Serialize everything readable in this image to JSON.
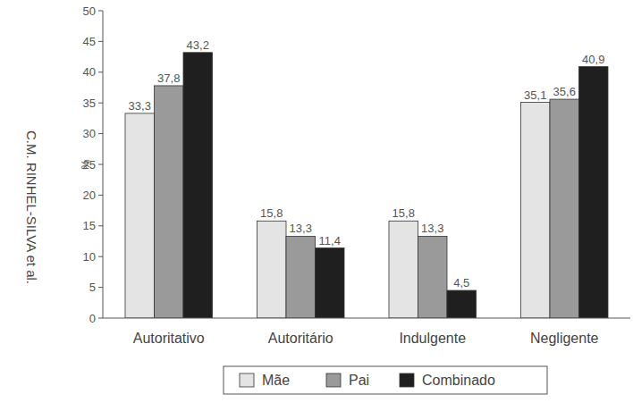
{
  "chart_data": {
    "type": "bar",
    "categories": [
      "Autoritativo",
      "Autoritário",
      "Indulgente",
      "Negligente"
    ],
    "series": [
      {
        "name": "Mãe",
        "color": "#e4e4e4",
        "values": [
          33.3,
          15.8,
          15.8,
          35.1
        ],
        "value_labels": [
          "33,3",
          "15,8",
          "15,8",
          "35,1"
        ]
      },
      {
        "name": "Pai",
        "color": "#9a9a9a",
        "values": [
          37.8,
          13.3,
          13.3,
          35.6
        ],
        "value_labels": [
          "37,8",
          "13,3",
          "13,3",
          "35,6"
        ]
      },
      {
        "name": "Combinado",
        "color": "#1f1f1f",
        "values": [
          43.2,
          11.4,
          4.5,
          40.9
        ],
        "value_labels": [
          "43,2",
          "11,4",
          "4,5",
          "40,9"
        ]
      }
    ],
    "ylabel": "%",
    "ylim": [
      0,
      50
    ],
    "yticks": [
      0,
      5,
      10,
      15,
      20,
      25,
      30,
      35,
      40,
      45,
      50
    ],
    "grid": false,
    "data_labels": true,
    "legend": "bottom",
    "annotations": [
      "C.M. RINHEL-SILVA et al."
    ]
  }
}
